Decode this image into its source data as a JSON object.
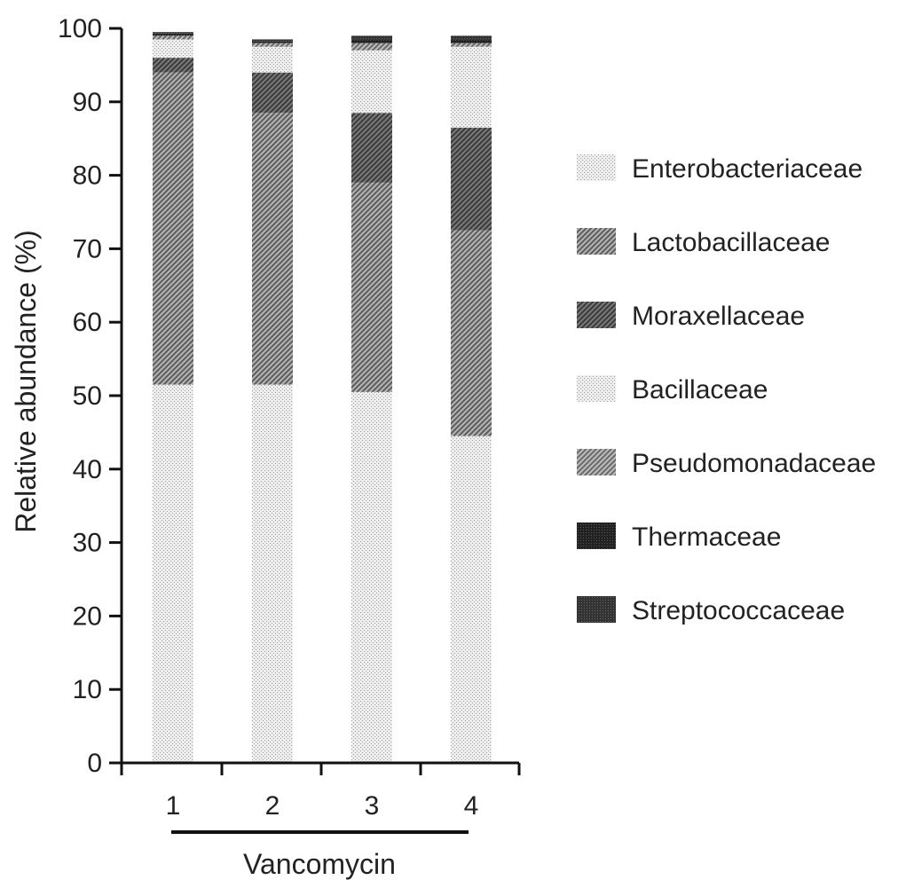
{
  "chart_data": {
    "type": "bar",
    "stacked": true,
    "xlabel": "",
    "ylabel": "Relative abundance (%)",
    "ylim": [
      0,
      100
    ],
    "yticks": [
      0,
      10,
      20,
      30,
      40,
      50,
      60,
      70,
      80,
      90,
      100
    ],
    "categories": [
      "1",
      "2",
      "3",
      "4"
    ],
    "group_label": "Vancomycin",
    "legend_position": "right",
    "grid": false,
    "series": [
      {
        "name": "Enterobacteriaceae",
        "pattern": "light-dots",
        "color": "#e2e2e2",
        "values": [
          51.5,
          51.5,
          50.5,
          44.5
        ]
      },
      {
        "name": "Lactobacillaceae",
        "pattern": "dense-hatch",
        "color": "#8f8f8f",
        "values": [
          42.5,
          37.0,
          28.5,
          28.0
        ]
      },
      {
        "name": "Moraxellaceae",
        "pattern": "dark-hatch",
        "color": "#5a5a5a",
        "values": [
          2.0,
          5.5,
          9.5,
          14.0
        ]
      },
      {
        "name": "Bacillaceae",
        "pattern": "light-dots",
        "color": "#d0d0d0",
        "values": [
          2.5,
          3.5,
          8.5,
          11.0
        ]
      },
      {
        "name": "Pseudomonadaceae",
        "pattern": "mid-hatch",
        "color": "#9c9c9c",
        "values": [
          0.5,
          0.5,
          1.0,
          0.5
        ]
      },
      {
        "name": "Thermaceae",
        "pattern": "solid-dark",
        "color": "#2a2a2a",
        "values": [
          0.3,
          0.2,
          0.5,
          0.5
        ]
      },
      {
        "name": "Streptococcaceae",
        "pattern": "solid-darker",
        "color": "#3a3a3a",
        "values": [
          0.2,
          0.3,
          0.5,
          0.5
        ]
      }
    ]
  }
}
